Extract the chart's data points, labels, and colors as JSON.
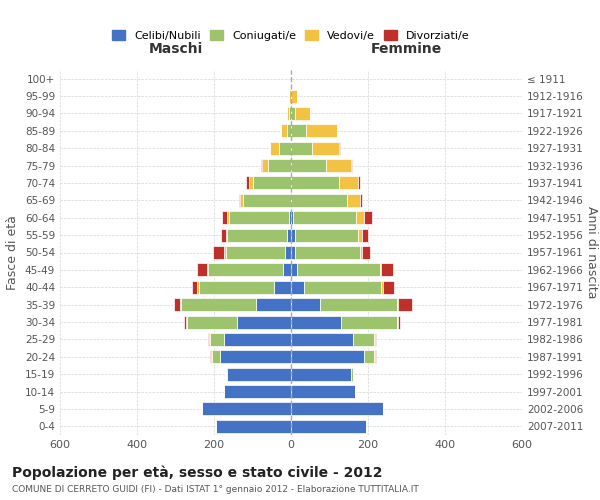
{
  "age_groups": [
    "0-4",
    "5-9",
    "10-14",
    "15-19",
    "20-24",
    "25-29",
    "30-34",
    "35-39",
    "40-44",
    "45-49",
    "50-54",
    "55-59",
    "60-64",
    "65-69",
    "70-74",
    "75-79",
    "80-84",
    "85-89",
    "90-94",
    "95-99",
    "100+"
  ],
  "birth_years": [
    "2007-2011",
    "2002-2006",
    "1997-2001",
    "1992-1996",
    "1987-1991",
    "1982-1986",
    "1977-1981",
    "1972-1976",
    "1967-1971",
    "1962-1966",
    "1957-1961",
    "1952-1956",
    "1947-1951",
    "1942-1946",
    "1937-1941",
    "1932-1936",
    "1927-1931",
    "1922-1926",
    "1917-1921",
    "1912-1916",
    "≤ 1911"
  ],
  "male": {
    "celibi": [
      195,
      230,
      175,
      165,
      185,
      175,
      140,
      90,
      45,
      20,
      15,
      10,
      5,
      0,
      0,
      0,
      0,
      0,
      0,
      0,
      0
    ],
    "coniugati": [
      0,
      0,
      0,
      5,
      20,
      35,
      130,
      195,
      195,
      195,
      155,
      155,
      155,
      125,
      100,
      60,
      30,
      10,
      5,
      0,
      0
    ],
    "vedovi": [
      0,
      0,
      0,
      0,
      3,
      3,
      3,
      3,
      3,
      3,
      3,
      3,
      5,
      8,
      10,
      15,
      25,
      15,
      5,
      5,
      0
    ],
    "divorziati": [
      0,
      0,
      0,
      0,
      3,
      3,
      5,
      15,
      15,
      25,
      30,
      15,
      15,
      3,
      8,
      3,
      0,
      0,
      0,
      0,
      0
    ]
  },
  "female": {
    "nubili": [
      195,
      240,
      165,
      155,
      190,
      160,
      130,
      75,
      35,
      15,
      10,
      10,
      5,
      0,
      0,
      0,
      0,
      0,
      0,
      0,
      0
    ],
    "coniugate": [
      0,
      0,
      0,
      5,
      25,
      55,
      145,
      200,
      200,
      215,
      170,
      165,
      165,
      145,
      125,
      90,
      55,
      40,
      10,
      0,
      0
    ],
    "vedove": [
      0,
      0,
      0,
      0,
      3,
      3,
      3,
      3,
      3,
      5,
      5,
      10,
      20,
      35,
      50,
      65,
      70,
      80,
      40,
      15,
      0
    ],
    "divorziate": [
      0,
      0,
      0,
      0,
      3,
      3,
      5,
      35,
      30,
      30,
      20,
      15,
      20,
      5,
      5,
      3,
      3,
      0,
      0,
      0,
      0
    ]
  },
  "colors": {
    "celibi": "#4472C4",
    "coniugati": "#9DC36C",
    "vedovi": "#F4C242",
    "divorziati": "#C0302B"
  },
  "xlim": 600,
  "title": "Popolazione per età, sesso e stato civile - 2012",
  "subtitle": "COMUNE DI CERRETO GUIDI (FI) - Dati ISTAT 1° gennaio 2012 - Elaborazione TUTTITALIA.IT",
  "ylabel_left": "Fasce di età",
  "ylabel_right": "Anni di nascita",
  "xlabel_left": "Maschi",
  "xlabel_right": "Femmine",
  "legend_labels": [
    "Celibi/Nubili",
    "Coniugati/e",
    "Vedovi/e",
    "Divorziati/e"
  ],
  "background_color": "#ffffff",
  "grid_color": "#cccccc"
}
